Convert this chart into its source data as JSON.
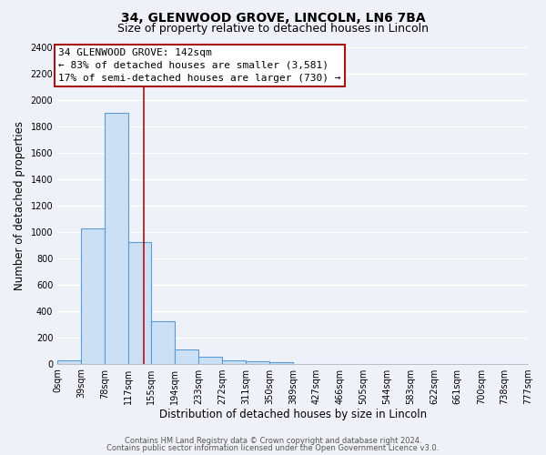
{
  "title": "34, GLENWOOD GROVE, LINCOLN, LN6 7BA",
  "subtitle": "Size of property relative to detached houses in Lincoln",
  "xlabel": "Distribution of detached houses by size in Lincoln",
  "ylabel": "Number of detached properties",
  "bar_values": [
    25,
    1025,
    1900,
    920,
    320,
    110,
    55,
    25,
    20,
    12,
    0,
    0,
    0,
    0,
    0,
    0,
    0,
    0,
    0,
    0
  ],
  "bin_edges": [
    0,
    39,
    78,
    117,
    155,
    194,
    233,
    272,
    311,
    350,
    389,
    427,
    466,
    505,
    544,
    583,
    622,
    661,
    700,
    738,
    777
  ],
  "tick_labels": [
    "0sqm",
    "39sqm",
    "78sqm",
    "117sqm",
    "155sqm",
    "194sqm",
    "233sqm",
    "272sqm",
    "311sqm",
    "350sqm",
    "389sqm",
    "427sqm",
    "466sqm",
    "505sqm",
    "544sqm",
    "583sqm",
    "622sqm",
    "661sqm",
    "700sqm",
    "738sqm",
    "777sqm"
  ],
  "bar_color": "#cce0f5",
  "bar_edge_color": "#5b9bd5",
  "vline_x": 142,
  "vline_color": "#aa1111",
  "ylim": [
    0,
    2400
  ],
  "yticks": [
    0,
    200,
    400,
    600,
    800,
    1000,
    1200,
    1400,
    1600,
    1800,
    2000,
    2200,
    2400
  ],
  "annotation_title": "34 GLENWOOD GROVE: 142sqm",
  "annotation_line1": "← 83% of detached houses are smaller (3,581)",
  "annotation_line2": "17% of semi-detached houses are larger (730) →",
  "annotation_box_color": "#ffffff",
  "annotation_box_edge": "#aa1111",
  "footer1": "Contains HM Land Registry data © Crown copyright and database right 2024.",
  "footer2": "Contains public sector information licensed under the Open Government Licence v3.0.",
  "background_color": "#eef2f8",
  "grid_color": "#ffffff",
  "title_fontsize": 10,
  "subtitle_fontsize": 9,
  "axis_fontsize": 8.5,
  "tick_fontsize": 7,
  "footer_fontsize": 6,
  "annot_fontsize": 8
}
